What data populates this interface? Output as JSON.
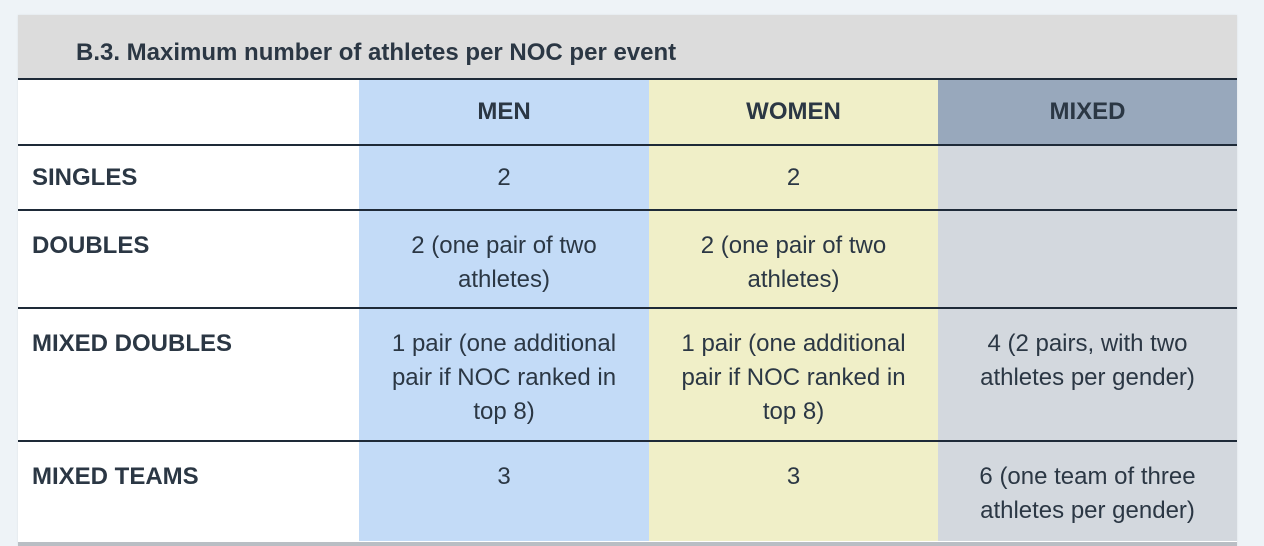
{
  "title": "B.3. Maximum number of athletes per NOC per event",
  "colors": {
    "men": "#c3dbf7",
    "women": "#f0efc8",
    "mixed": "#d3d8de",
    "mixed_header": "#98a8bc",
    "title_bar": "#dcdcdc",
    "text": "#2b3744"
  },
  "table": {
    "headers": [
      "",
      "MEN",
      "WOMEN",
      "MIXED"
    ],
    "rows": [
      {
        "label": "SINGLES",
        "men": "2",
        "women": "2",
        "mixed": ""
      },
      {
        "label": "DOUBLES",
        "men": "2 (one pair of two athletes)",
        "women": "2 (one pair of two athletes)",
        "mixed": ""
      },
      {
        "label": "MIXED DOUBLES",
        "men": "1 pair (one additional pair if NOC ranked in top 8)",
        "women": "1 pair (one additional pair if NOC ranked in top 8)",
        "mixed": "4 (2 pairs, with two athletes per gender)"
      },
      {
        "label": "MIXED TEAMS",
        "men": "3",
        "women": "3",
        "mixed": "6 (one team of three athletes per gender)"
      }
    ]
  }
}
